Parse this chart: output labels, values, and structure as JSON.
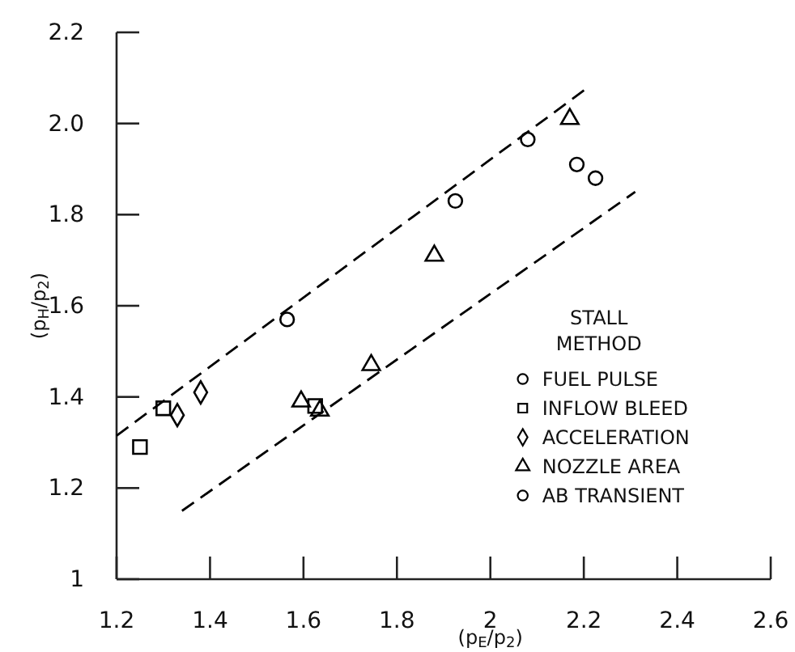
{
  "chart_data": {
    "type": "scatter",
    "xlabel": "(p$_{E}$/p$_{2}$)",
    "ylabel": "(p$_{H}$/p$_{2}$)",
    "legend_title": "STALL METHOD",
    "legend": "bottom right",
    "grid": false,
    "xlim": [
      1.2,
      2.6
    ],
    "xticks": [
      1.2,
      1.4,
      1.6,
      1.8,
      2,
      2.2,
      2.4,
      2.6
    ],
    "ylim": [
      1,
      2.2
    ],
    "yticks": [
      1,
      1.2,
      1.4,
      1.6,
      1.8,
      {
        "value": 2,
        "label": "2.0"
      },
      2.2
    ],
    "series": [
      {
        "name": "FUEL PULSE",
        "color": "#000000",
        "marker": "circle",
        "x": [
          1.565,
          1.925,
          2.08,
          2.185
        ],
        "values": [
          1.57,
          1.83,
          1.965,
          1.91
        ]
      },
      {
        "name": "INFLOW BLEED",
        "color": "#000000",
        "marker": "square",
        "x": [
          1.25,
          1.3,
          1.625
        ],
        "values": [
          1.29,
          1.375,
          1.38
        ]
      },
      {
        "name": "ACCELERATION",
        "color": "#000000",
        "marker": "diamond",
        "x": [
          1.33,
          1.38
        ],
        "values": [
          1.36,
          1.41
        ]
      },
      {
        "name": "NOZZLE AREA",
        "color": "#000000",
        "marker": "triangle",
        "x": [
          1.595,
          1.635,
          1.745,
          1.88,
          2.17
        ],
        "values": [
          1.39,
          1.37,
          1.47,
          1.71,
          2.01
        ]
      },
      {
        "name": "AB TRANSIENT",
        "color": "#000000",
        "marker": "circle",
        "x": [
          2.225
        ],
        "values": [
          1.88
        ]
      },
      {
        "type": "line",
        "color": "#000000",
        "marker": "none",
        "line_style": "dashed",
        "x": [
          1.2,
          2.21
        ],
        "values": [
          1.315,
          2.08
        ]
      },
      {
        "type": "line",
        "color": "#000000",
        "marker": "none",
        "line_style": "dashed",
        "x": [
          1.34,
          2.31
        ],
        "values": [
          1.15,
          1.85
        ]
      }
    ]
  }
}
